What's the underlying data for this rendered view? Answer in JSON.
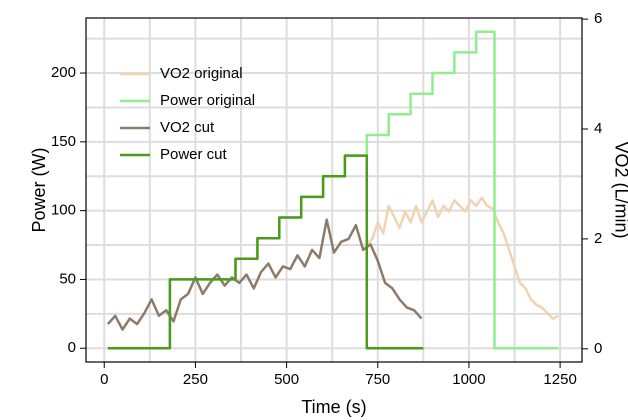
{
  "chart_data": {
    "type": "line",
    "xlabel": "Time (s)",
    "ylabel": "Power (W)",
    "y2label": "VO2 (L/min)",
    "xlim": [
      -50,
      1310
    ],
    "xticks": [
      0,
      250,
      500,
      750,
      1000,
      1250
    ],
    "ylim": [
      -10,
      240
    ],
    "yticks": [
      0,
      50,
      100,
      150,
      200
    ],
    "y2lim": [
      -0.24,
      6.02
    ],
    "y2ticks": [
      0,
      2,
      4,
      6
    ],
    "x_minor_ticks": [
      125,
      375,
      625,
      875,
      1125
    ],
    "y_minor_ticks": [
      25,
      75,
      125,
      175,
      225
    ],
    "grid": true,
    "legend": "upper left",
    "series": [
      {
        "name": "VO2 original",
        "color": "#f0d4b2",
        "axis": "y2",
        "x": [
          720,
          735,
          750,
          765,
          780,
          795,
          810,
          825,
          840,
          855,
          870,
          885,
          900,
          915,
          930,
          945,
          960,
          975,
          990,
          1005,
          1020,
          1035,
          1050,
          1065,
          1080,
          1095,
          1110,
          1125,
          1140,
          1155,
          1170,
          1185,
          1200,
          1215,
          1230,
          1245
        ],
        "values": [
          1.9,
          2.0,
          2.3,
          2.1,
          2.6,
          2.4,
          2.2,
          2.5,
          2.3,
          2.6,
          2.3,
          2.5,
          2.7,
          2.4,
          2.6,
          2.5,
          2.7,
          2.6,
          2.5,
          2.7,
          2.6,
          2.75,
          2.6,
          2.55,
          2.3,
          2.1,
          1.8,
          1.5,
          1.2,
          1.1,
          0.9,
          0.8,
          0.75,
          0.65,
          0.55,
          0.6
        ]
      },
      {
        "name": "Power original",
        "color": "#90ee90",
        "x": [
          10,
          180,
          180,
          360,
          360,
          420,
          420,
          480,
          480,
          540,
          540,
          600,
          600,
          660,
          660,
          720,
          720,
          780,
          780,
          840,
          840,
          900,
          900,
          960,
          960,
          1020,
          1020,
          1070,
          1070,
          1245
        ],
        "values": [
          0,
          0,
          50,
          50,
          65,
          65,
          80,
          80,
          95,
          95,
          110,
          110,
          125,
          125,
          140,
          140,
          155,
          155,
          170,
          170,
          185,
          185,
          200,
          200,
          215,
          215,
          230,
          230,
          0,
          0
        ]
      },
      {
        "name": "VO2 cut",
        "color": "#8c7b6b",
        "axis": "y2",
        "x": [
          10,
          30,
          50,
          70,
          90,
          110,
          130,
          150,
          170,
          190,
          210,
          230,
          250,
          270,
          290,
          310,
          330,
          350,
          370,
          390,
          410,
          430,
          450,
          470,
          490,
          510,
          530,
          550,
          570,
          590,
          610,
          630,
          650,
          670,
          690,
          710,
          730,
          750,
          770,
          790,
          810,
          830,
          850,
          870
        ],
        "values": [
          0.45,
          0.6,
          0.35,
          0.55,
          0.45,
          0.65,
          0.9,
          0.6,
          0.7,
          0.5,
          0.9,
          1.0,
          1.3,
          1.0,
          1.2,
          1.35,
          1.15,
          1.3,
          1.2,
          1.35,
          1.1,
          1.4,
          1.55,
          1.3,
          1.5,
          1.45,
          1.7,
          1.5,
          1.8,
          1.65,
          2.35,
          1.75,
          1.95,
          2.0,
          2.25,
          1.8,
          1.9,
          1.6,
          1.2,
          1.1,
          0.9,
          0.75,
          0.7,
          0.55
        ]
      },
      {
        "name": "Power cut",
        "color": "#4c9a1c",
        "x": [
          10,
          180,
          180,
          360,
          360,
          420,
          420,
          480,
          480,
          540,
          540,
          600,
          600,
          660,
          660,
          720,
          720,
          875
        ],
        "values": [
          0,
          0,
          50,
          50,
          65,
          65,
          80,
          80,
          95,
          95,
          110,
          110,
          125,
          125,
          140,
          140,
          0,
          0
        ]
      }
    ]
  }
}
